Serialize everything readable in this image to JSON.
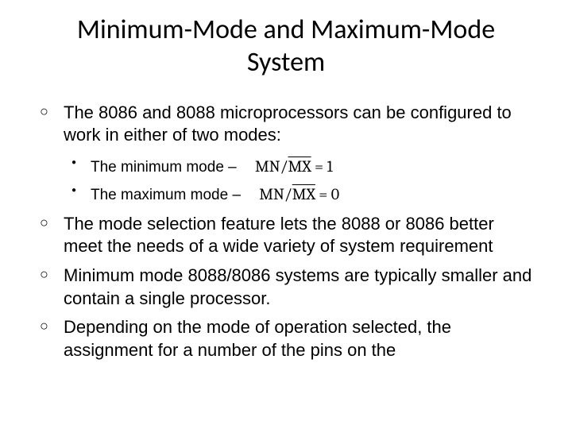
{
  "title": "Minimum-Mode and Maximum-Mode System",
  "bullets": [
    {
      "text": "The 8086 and 8088 microprocessors can be configured to work in either of two modes:",
      "sub": [
        {
          "label": "The minimum mode –",
          "mn": "MN/",
          "mx": "MX",
          "eq": " = 1"
        },
        {
          "label": "The maximum mode –",
          "mn": "MN/",
          "mx": "MX",
          "eq": " = 0"
        }
      ]
    },
    {
      "text": "The mode selection feature lets the 8088 or 8086 better meet the needs of a wide variety of system requirement"
    },
    {
      "text": "Minimum mode 8088/8086 systems are typically smaller and contain a single processor."
    },
    {
      "text": "Depending on the mode of operation selected, the assignment for a number of the pins on the"
    }
  ],
  "colors": {
    "text": "#000000",
    "background": "#ffffff"
  },
  "typography": {
    "title_fontsize": 34,
    "body_fontsize": 22,
    "sub_fontsize": 19
  }
}
